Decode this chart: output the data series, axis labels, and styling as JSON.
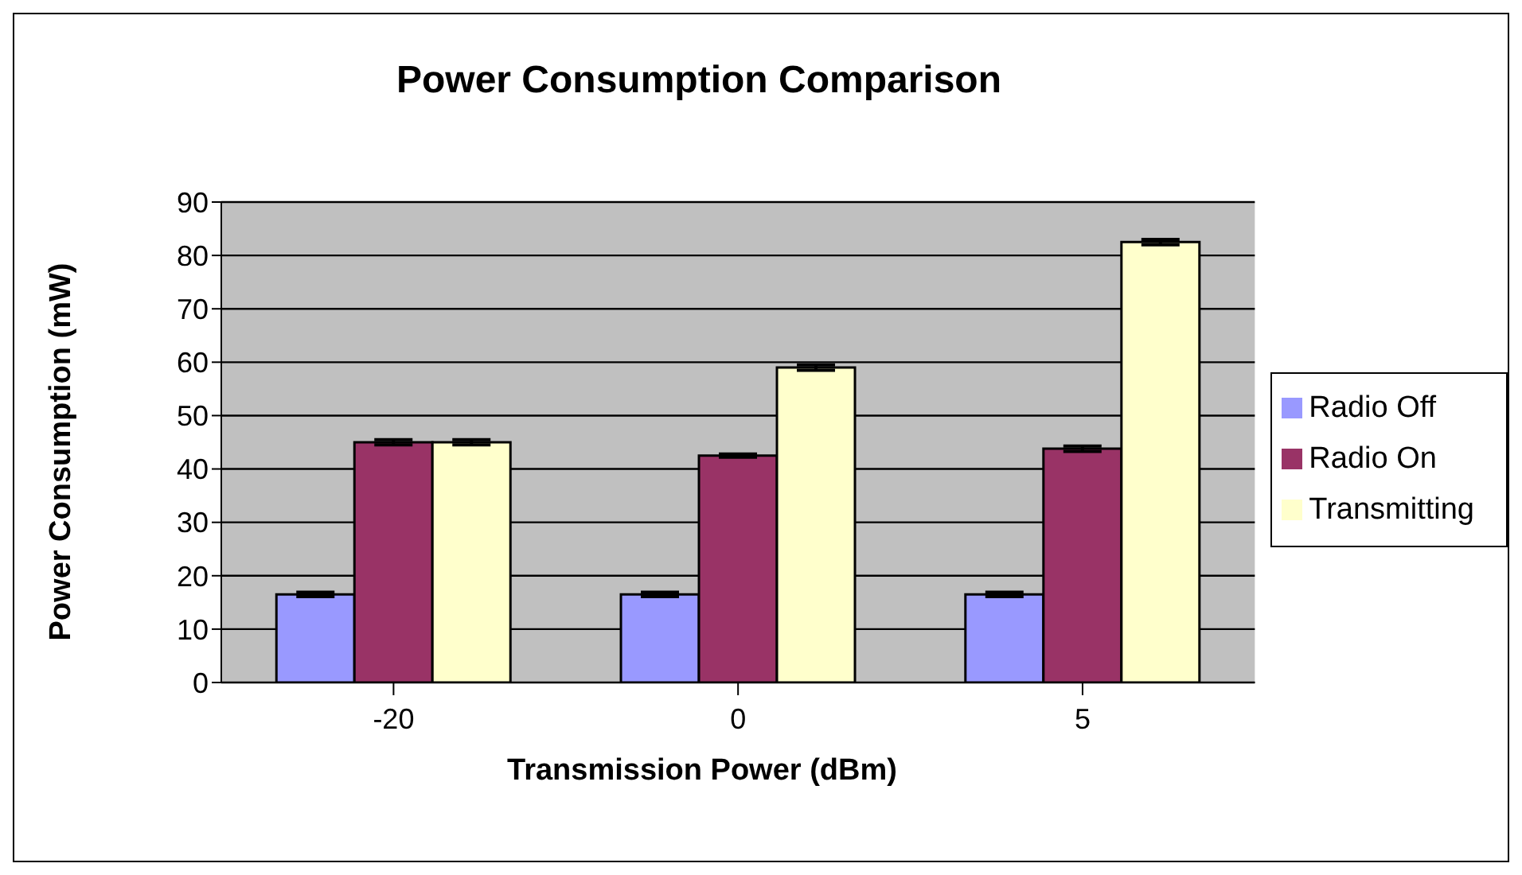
{
  "chart_data": {
    "type": "bar",
    "title": "Power Consumption Comparison",
    "xlabel": "Transmission Power (dBm)",
    "ylabel": "Power Consumption (mW)",
    "categories": [
      "-20",
      "0",
      "5"
    ],
    "series": [
      {
        "name": "Radio Off",
        "color": "#9999ff",
        "values": [
          16.5,
          16.5,
          16.5
        ],
        "errors": [
          0.4,
          0.4,
          0.4
        ]
      },
      {
        "name": "Radio On",
        "color": "#993366",
        "values": [
          45,
          42.5,
          43.8
        ],
        "errors": [
          0.5,
          0.3,
          0.5
        ]
      },
      {
        "name": "Transmitting",
        "color": "#ffffcc",
        "values": [
          45,
          59,
          82.5
        ],
        "errors": [
          0.5,
          0.5,
          0.5
        ]
      }
    ],
    "ylim": [
      0,
      90
    ],
    "yticks": [
      0,
      10,
      20,
      30,
      40,
      50,
      60,
      70,
      80,
      90
    ],
    "grid": "y",
    "legend": "right"
  }
}
